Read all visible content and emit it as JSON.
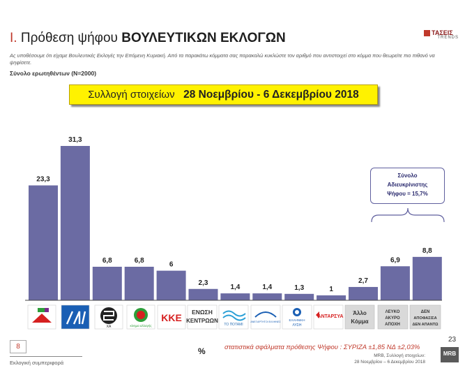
{
  "header": {
    "roman": "I.",
    "title_a": "Πρόθεση ψήφου",
    "title_b": "ΒΟΥΛΕΥΤΙΚΩΝ ΕΚΛΟΓΩΝ",
    "question": "Ας υποθέσουμε ότι είχαμε Βουλευτικές Εκλογές την Επόμενη Κυριακή. Από τα παρακάτω κόμματα σας παρακαλώ κυκλώστε τον αριθμό που αντιστοιχεί στο κόμμα που θεωρείτε πιο πιθανό να ψηφίσετε.",
    "sample": "Σύνολο ερωτηθέντων (N=2000)",
    "logo_name": "ΤΑΣΕΙΣ",
    "logo_sub": "TRENDS"
  },
  "period": {
    "prefix": "Συλλογή στοιχείων",
    "dates": "28 Νοεμβρίου - 6 Δεκεμβρίου 2018"
  },
  "callout": {
    "line1": "Σύνολο",
    "line2": "Αδιευκρίνιστης",
    "line3": "Ψήφου = 15,7%"
  },
  "chart_data": {
    "type": "bar",
    "categories": [
      "ΣΥΡΙΖΑ",
      "ΝΔ",
      "ΧΑ",
      "ΚΙΝΑΛ",
      "ΚΚΕ",
      "ΕΝΩΣΗ ΚΕΝΤΡΩΩΝ",
      "ΤΟ ΠΟΤΑΜΙ",
      "ΑΝΕΛ",
      "ΕΛΛΗΝΙΚΗ ΛΥΣΗ",
      "ΑΝΤΑΡΣΥΑ",
      "Άλλο Κόμμα",
      "ΛΕΥΚΟ ΑΚΥΡΟ ΑΠΟΧΗ",
      "ΔΕΝ ΑΠΟΦΑΣΙΣΑ ΔΕΝ ΑΠΑΝΤΩ"
    ],
    "values": [
      23.3,
      31.3,
      6.8,
      6.8,
      6.0,
      2.3,
      1.4,
      1.4,
      1.3,
      1.0,
      2.7,
      6.9,
      8.8
    ],
    "value_labels": [
      "23,3",
      "31,3",
      "6,8",
      "6,8",
      "6",
      "2,3",
      "1,4",
      "1,4",
      "1,3",
      "1",
      "2,7",
      "6,9",
      "8,8"
    ],
    "ylim": [
      0,
      33
    ],
    "bar_color": "#6b6ba3",
    "grid": false
  },
  "logos": {
    "xa": "ΧΑ",
    "kinal": "κίνημα αλλαγής",
    "kke": "ΚΚΕ",
    "enosi_1": "ΕΝΩΣΗ",
    "enosi_2": "ΚΕΝΤΡΩΩΝ",
    "potami": "ΤΟ ΠΟΤΑΜΙ",
    "anel": "ΑΝΕΞΑΡΤΗΤΟΙ ΕΛΛΗΝΕΣ",
    "ellisi_1": "ΕΛΛΗΝΙΚΗ",
    "ellisi_2": "ΛΥΣΗ",
    "antarsya": "ΑΝΤΑΡΣΥΑ"
  },
  "box_labels": {
    "allo_1": "Άλλο",
    "allo_2": "Κόμμα",
    "lefko_1": "ΛΕΥΚΟ",
    "lefko_2": "ΑΚΥΡΟ",
    "lefko_3": "ΑΠΟΧΗ",
    "den_1": "ΔΕΝ",
    "den_2": "ΑΠΟΦΑΣΙΣΑ",
    "den_3": "ΔΕΝ ΑΠΑΝΤΩ"
  },
  "footer": {
    "page_box": "8",
    "section": "Εκλογική συμπεριφορά",
    "percent": "%",
    "errors": "στατιστικά σφάλματα πρόθεσης Ψήφου : ΣΥΡΙΖΑ ±1,85 ΝΔ ±2,03%",
    "page_number": "23",
    "collection_1": "MRB, Συλλογή στοιχείων:",
    "collection_2": "28 Νοεμβρίου – 6 Δεκεμβρίου 2018",
    "mrb": "MRB"
  },
  "colors": {
    "accent_red": "#c0392b",
    "bar": "#6b6ba3",
    "period_bg": "#fff200",
    "nd_blue": "#1a5fb4",
    "kke_red": "#d62020",
    "box_grey": "#d9d9d9"
  }
}
